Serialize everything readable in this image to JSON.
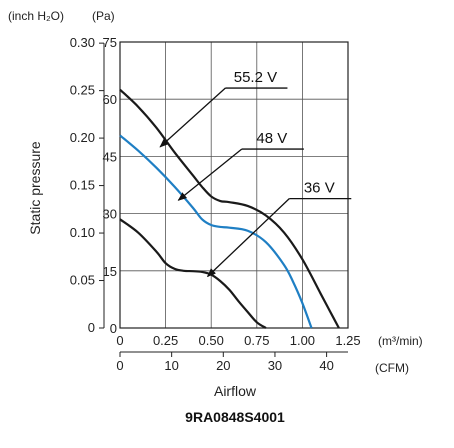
{
  "chart_data": {
    "type": "line",
    "title": "9RA0848S4001",
    "xlabel": "Airflow",
    "ylabel": "Static pressure",
    "x_unit_primary": "(m³/min)",
    "x_unit_secondary": "(CFM)",
    "y_unit_primary": "(Pa)",
    "y_unit_secondary": "(inch H₂O)",
    "xlim": [
      0,
      1.25
    ],
    "ylim": [
      0,
      75
    ],
    "x_ticks": [
      0,
      0.25,
      0.5,
      0.75,
      1.0,
      1.25
    ],
    "x_tick_labels": [
      "0",
      "0.25",
      "0.50",
      "0.75",
      "1.00",
      "1.25"
    ],
    "x2_tick_values": [
      0,
      10,
      20,
      30,
      40
    ],
    "x2_tick_labels": [
      "0",
      "10",
      "20",
      "30",
      "40"
    ],
    "y_ticks": [
      0,
      15,
      30,
      45,
      60,
      75
    ],
    "y_tick_labels": [
      "0",
      "15",
      "30",
      "45",
      "60",
      "75"
    ],
    "y2_tick_labels": [
      "0",
      "0.05",
      "0.10",
      "0.15",
      "0.20",
      "0.25",
      "0.30"
    ],
    "y2_tick_values_pa": [
      0,
      12.45,
      24.9,
      37.35,
      49.8,
      62.25,
      74.7
    ],
    "grid": true,
    "series": [
      {
        "name": "55.2 V",
        "color": "#1a1a1a",
        "x": [
          0,
          0.1,
          0.2,
          0.3,
          0.4,
          0.45,
          0.5,
          0.55,
          0.6,
          0.7,
          0.8,
          0.9,
          1.0,
          1.1,
          1.15,
          1.2
        ],
        "y": [
          62.5,
          58,
          52.5,
          46,
          40,
          37,
          34.5,
          33.3,
          33,
          32,
          29.5,
          25,
          18,
          9,
          4.5,
          0
        ]
      },
      {
        "name": "48 V",
        "color": "#1f7fc4",
        "x": [
          0,
          0.1,
          0.2,
          0.3,
          0.4,
          0.45,
          0.5,
          0.55,
          0.6,
          0.7,
          0.8,
          0.9,
          0.95,
          1.0,
          1.05
        ],
        "y": [
          50.5,
          46.5,
          42,
          37,
          31.5,
          28.5,
          27,
          26.5,
          26.3,
          25.5,
          22.5,
          16.5,
          12,
          6.5,
          0
        ]
      },
      {
        "name": "36 V",
        "color": "#1a1a1a",
        "x": [
          0,
          0.1,
          0.2,
          0.25,
          0.3,
          0.35,
          0.4,
          0.45,
          0.5,
          0.55,
          0.6,
          0.65,
          0.7,
          0.75,
          0.8
        ],
        "y": [
          28.5,
          25,
          20,
          17,
          15.5,
          15,
          14.9,
          14.7,
          14,
          12.3,
          10,
          7,
          4.2,
          1.5,
          0
        ]
      }
    ],
    "annotations": [
      {
        "text": "55.2 V",
        "series": "55.2 V",
        "label_x": 0.6,
        "label_y": 64.5,
        "arrow_to_x": 0.22,
        "arrow_to_y": 47.5
      },
      {
        "text": "48 V",
        "series": "48 V",
        "label_x": 0.69,
        "label_y": 48.5,
        "arrow_to_x": 0.32,
        "arrow_to_y": 33.5
      },
      {
        "text": "36 V",
        "series": "36 V",
        "label_x": 0.95,
        "label_y": 35.5,
        "arrow_to_x": 0.48,
        "arrow_to_y": 13.5
      }
    ]
  }
}
